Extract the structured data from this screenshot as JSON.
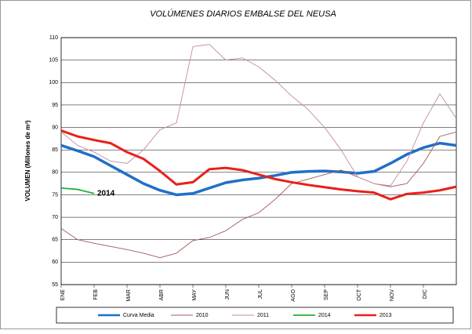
{
  "chart_data": {
    "type": "line",
    "title": "VOLÚMENES DIARIOS EMBALSE DEL NEUSA",
    "y_label": "VOLUMEN (Millones de m³)",
    "annotation": "2014",
    "x": [
      0,
      0.5,
      1,
      1.5,
      2,
      2.5,
      3,
      3.5,
      4,
      4.5,
      5,
      5.5,
      6,
      6.5,
      7,
      7.5,
      8,
      8.5,
      9,
      9.5,
      10,
      10.5,
      11,
      11.5,
      12
    ],
    "xlim": [
      0,
      12
    ],
    "xticks": [
      {
        "value": 0,
        "label": "ENE"
      },
      {
        "value": 1,
        "label": "FEB"
      },
      {
        "value": 2,
        "label": "MAR"
      },
      {
        "value": 3,
        "label": "ABR"
      },
      {
        "value": 4,
        "label": "MAY"
      },
      {
        "value": 5,
        "label": "JUN"
      },
      {
        "value": 6,
        "label": "JUL"
      },
      {
        "value": 7,
        "label": "AGO"
      },
      {
        "value": 8,
        "label": "SEP"
      },
      {
        "value": 9,
        "label": "OCT"
      },
      {
        "value": 10,
        "label": "NOV"
      },
      {
        "value": 11,
        "label": "DIC"
      }
    ],
    "ylim": [
      55,
      110
    ],
    "yticks": [
      55,
      60,
      65,
      70,
      75,
      80,
      85,
      90,
      95,
      100,
      105,
      110
    ],
    "grid": true,
    "series": [
      {
        "name": "Curva Media",
        "color": "#1f6fc8",
        "width": 3.5,
        "values": [
          86,
          84.8,
          83.5,
          81.5,
          79.5,
          77.5,
          76,
          75,
          75.3,
          76.5,
          77.7,
          78.3,
          78.7,
          79.3,
          80,
          80.2,
          80.3,
          80.1,
          79.8,
          80.2,
          82,
          84,
          85.5,
          86.5,
          86
        ]
      },
      {
        "name": "2010",
        "color": "#a05a5a",
        "width": 0.9,
        "values": [
          67.5,
          65,
          64.2,
          63.5,
          62.8,
          62,
          61,
          62,
          64.8,
          65.5,
          67,
          69.5,
          71,
          74,
          77.5,
          78.5,
          79.5,
          80.5,
          79,
          77.5,
          76.8,
          77.5,
          82,
          88,
          89
        ]
      },
      {
        "name": "2011",
        "color": "#c48a9a",
        "width": 0.9,
        "values": [
          89,
          86,
          84.5,
          82.5,
          82,
          85,
          89.5,
          91,
          108,
          108.5,
          105,
          105.5,
          103.5,
          100.5,
          97,
          94,
          90,
          85,
          79,
          77.5,
          77,
          82.5,
          91,
          97.5,
          92
        ]
      },
      {
        "name": "2014",
        "color": "#22b03a",
        "width": 1.8,
        "values": [
          76.5,
          76.2,
          75.3,
          null,
          null,
          null,
          null,
          null,
          null,
          null,
          null,
          null,
          null,
          null,
          null,
          null,
          null,
          null,
          null,
          null,
          null,
          null,
          null,
          null,
          null
        ]
      },
      {
        "name": "2013",
        "color": "#e8201a",
        "width": 3,
        "values": [
          89.3,
          88,
          87.2,
          86.5,
          84.5,
          83,
          80.3,
          77.3,
          77.8,
          80.7,
          81,
          80.5,
          79.5,
          78.5,
          77.8,
          77.2,
          76.7,
          76.2,
          75.8,
          75.5,
          74,
          75.2,
          75.5,
          76,
          76.8
        ]
      }
    ]
  }
}
